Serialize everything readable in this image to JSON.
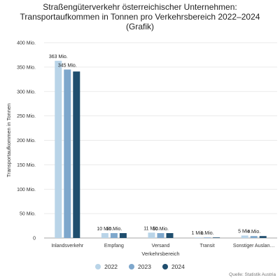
{
  "chart_data": {
    "type": "bar",
    "title_lines": [
      "Straßengüterverkehr österreichischer Unternehmen:",
      "Transportaufkommen in Tonnen pro Verkehrsbereich 2022–2024",
      "(Grafik)"
    ],
    "xlabel": "Verkehrsbereich",
    "ylabel": "Transportaufkommen in Tonnen",
    "ylim": [
      0,
      400
    ],
    "y_ticks": [
      0,
      50,
      100,
      150,
      200,
      250,
      300,
      350,
      400
    ],
    "y_tick_labels": [
      "0",
      "50 Mio.",
      "100 Mio.",
      "150 Mio.",
      "200 Mio.",
      "250 Mio.",
      "300 Mio.",
      "350 Mio.",
      "400 Mio."
    ],
    "categories": [
      "Inlandsverkehr",
      "Empfang",
      "Versand",
      "Transit",
      "Sonstiger Auslan…"
    ],
    "series": [
      {
        "name": "2022",
        "color": "#b9d4e8",
        "values": [
          363,
          10,
          11,
          1,
          5
        ],
        "labels": [
          "363 Mio.",
          "10 Mio.",
          "11 Mio.",
          "1 Mio.",
          "5 Mio."
        ]
      },
      {
        "name": "2023",
        "color": "#7ea7cc",
        "values": [
          345,
          10,
          10,
          1,
          4
        ],
        "labels": [
          "345 Mio.",
          "10 Mio.",
          "10 Mio.",
          "1 Mio.",
          "4 Mio."
        ]
      },
      {
        "name": "2024",
        "color": "#1f4e6e",
        "values": [
          341,
          10,
          10,
          1,
          4
        ],
        "labels": [
          "",
          "",
          "",
          "",
          ""
        ]
      }
    ],
    "grid": true,
    "legend_position": "bottom",
    "source": "Quelle: Statistik Austria"
  }
}
